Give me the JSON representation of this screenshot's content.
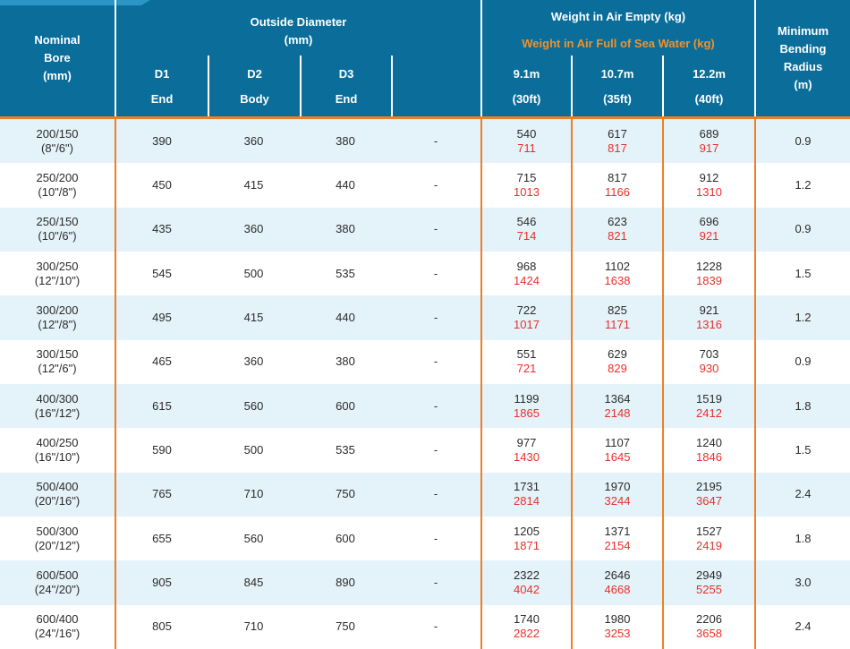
{
  "colors": {
    "header_blue": "#0A6D9A",
    "tab_strip_blue": "#2B96C6",
    "accent_orange_line": "#F07F24",
    "accent_orange_text": "#F0922D",
    "weight_full_red": "#E8302A",
    "row_alt_blue": "#E4F2F9",
    "body_text": "#2B2B2B"
  },
  "header": {
    "nominal_bore": "Nominal\nBore\n(mm)",
    "outside_diameter_group": "Outside Diameter\n(mm)",
    "weight_empty_title": "Weight in Air Empty (kg)",
    "weight_full_title": "Weight in Air Full of Sea Water (kg)",
    "min_bending": "Minimum\nBending\nRadius\n(m)",
    "sub": {
      "d1_code": "D1",
      "d1_label": "End",
      "d2_code": "D2",
      "d2_label": "Body",
      "d3_code": "D3",
      "d3_label": "End",
      "len1_m": "9.1m",
      "len1_ft": "(30ft)",
      "len2_m": "10.7m",
      "len2_ft": "(35ft)",
      "len3_m": "12.2m",
      "len3_ft": "(40ft)"
    }
  },
  "rows": [
    {
      "bore": "200/150",
      "bore_inches": "(8\"/6\")",
      "d1": "390",
      "d2": "360",
      "d3": "380",
      "d4": "-",
      "w1_empty": "540",
      "w1_full": "711",
      "w2_empty": "617",
      "w2_full": "817",
      "w3_empty": "689",
      "w3_full": "917",
      "radius": "0.9"
    },
    {
      "bore": "250/200",
      "bore_inches": "(10\"/8\")",
      "d1": "450",
      "d2": "415",
      "d3": "440",
      "d4": "-",
      "w1_empty": "715",
      "w1_full": "1013",
      "w2_empty": "817",
      "w2_full": "1166",
      "w3_empty": "912",
      "w3_full": "1310",
      "radius": "1.2"
    },
    {
      "bore": "250/150",
      "bore_inches": "(10\"/6\")",
      "d1": "435",
      "d2": "360",
      "d3": "380",
      "d4": "-",
      "w1_empty": "546",
      "w1_full": "714",
      "w2_empty": "623",
      "w2_full": "821",
      "w3_empty": "696",
      "w3_full": "921",
      "radius": "0.9"
    },
    {
      "bore": "300/250",
      "bore_inches": "(12\"/10\")",
      "d1": "545",
      "d2": "500",
      "d3": "535",
      "d4": "-",
      "w1_empty": "968",
      "w1_full": "1424",
      "w2_empty": "1102",
      "w2_full": "1638",
      "w3_empty": "1228",
      "w3_full": "1839",
      "radius": "1.5"
    },
    {
      "bore": "300/200",
      "bore_inches": "(12\"/8\")",
      "d1": "495",
      "d2": "415",
      "d3": "440",
      "d4": "-",
      "w1_empty": "722",
      "w1_full": "1017",
      "w2_empty": "825",
      "w2_full": "1171",
      "w3_empty": "921",
      "w3_full": "1316",
      "radius": "1.2"
    },
    {
      "bore": "300/150",
      "bore_inches": "(12\"/6\")",
      "d1": "465",
      "d2": "360",
      "d3": "380",
      "d4": "-",
      "w1_empty": "551",
      "w1_full": "721",
      "w2_empty": "629",
      "w2_full": "829",
      "w3_empty": "703",
      "w3_full": "930",
      "radius": "0.9"
    },
    {
      "bore": "400/300",
      "bore_inches": "(16\"/12\")",
      "d1": "615",
      "d2": "560",
      "d3": "600",
      "d4": "-",
      "w1_empty": "1199",
      "w1_full": "1865",
      "w2_empty": "1364",
      "w2_full": "2148",
      "w3_empty": "1519",
      "w3_full": "2412",
      "radius": "1.8"
    },
    {
      "bore": "400/250",
      "bore_inches": "(16\"/10\")",
      "d1": "590",
      "d2": "500",
      "d3": "535",
      "d4": "-",
      "w1_empty": "977",
      "w1_full": "1430",
      "w2_empty": "1107",
      "w2_full": "1645",
      "w3_empty": "1240",
      "w3_full": "1846",
      "radius": "1.5"
    },
    {
      "bore": "500/400",
      "bore_inches": "(20\"/16\")",
      "d1": "765",
      "d2": "710",
      "d3": "750",
      "d4": "-",
      "w1_empty": "1731",
      "w1_full": "2814",
      "w2_empty": "1970",
      "w2_full": "3244",
      "w3_empty": "2195",
      "w3_full": "3647",
      "radius": "2.4"
    },
    {
      "bore": "500/300",
      "bore_inches": "(20\"/12\")",
      "d1": "655",
      "d2": "560",
      "d3": "600",
      "d4": "-",
      "w1_empty": "1205",
      "w1_full": "1871",
      "w2_empty": "1371",
      "w2_full": "2154",
      "w3_empty": "1527",
      "w3_full": "2419",
      "radius": "1.8"
    },
    {
      "bore": "600/500",
      "bore_inches": "(24\"/20\")",
      "d1": "905",
      "d2": "845",
      "d3": "890",
      "d4": "-",
      "w1_empty": "2322",
      "w1_full": "4042",
      "w2_empty": "2646",
      "w2_full": "4668",
      "w3_empty": "2949",
      "w3_full": "5255",
      "radius": "3.0"
    },
    {
      "bore": "600/400",
      "bore_inches": "(24\"/16\")",
      "d1": "805",
      "d2": "710",
      "d3": "750",
      "d4": "-",
      "w1_empty": "1740",
      "w1_full": "2822",
      "w2_empty": "1980",
      "w2_full": "3253",
      "w3_empty": "2206",
      "w3_full": "3658",
      "radius": "2.4"
    }
  ]
}
